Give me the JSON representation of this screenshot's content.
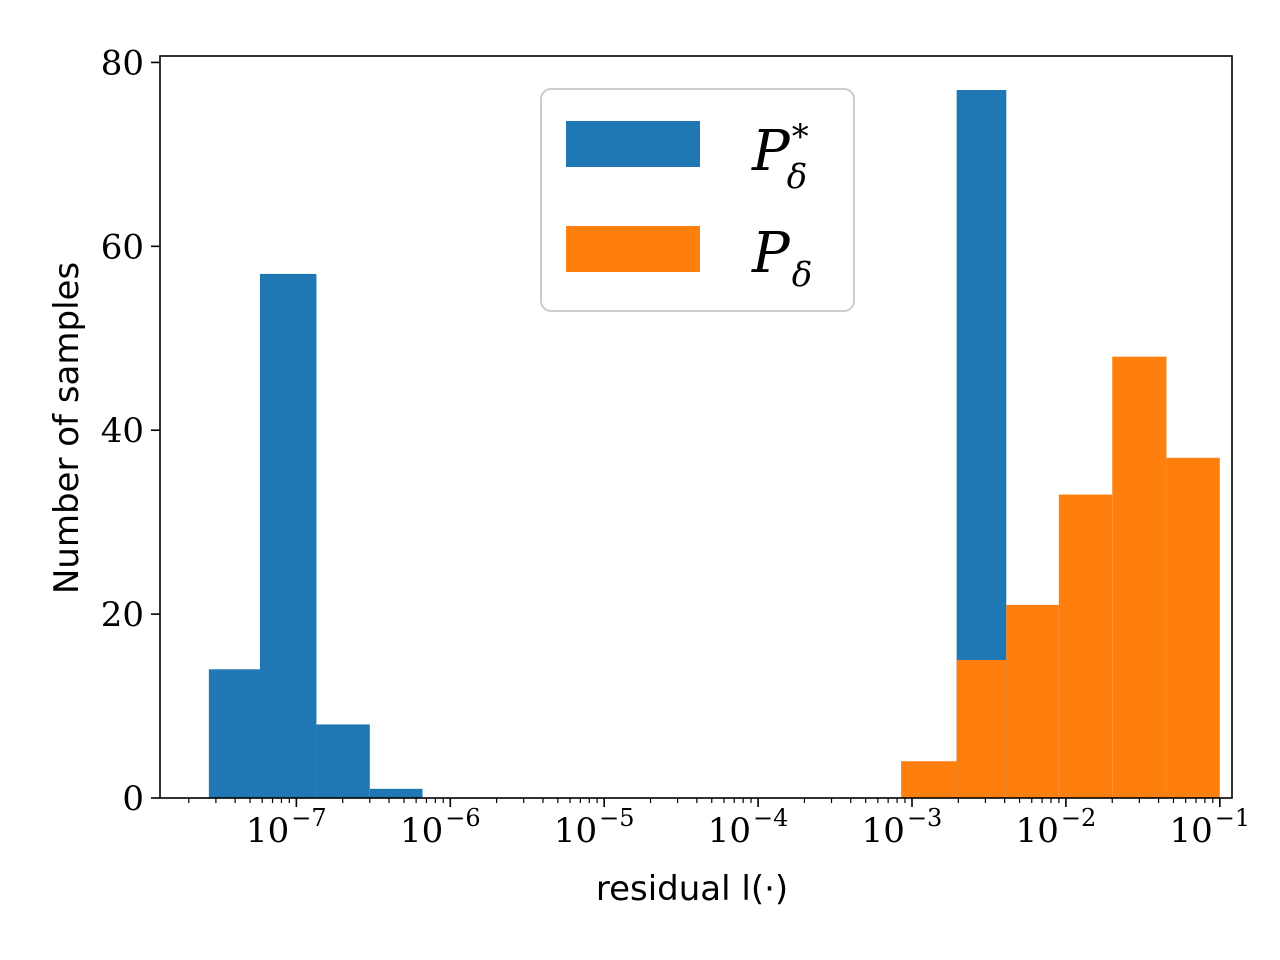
{
  "chart_data": {
    "type": "bar",
    "title": "",
    "xlabel": "residual l(·)",
    "ylabel": "Number of samples",
    "xscale": "log",
    "xlim": [
      1.3e-08,
      0.12
    ],
    "ylim": [
      0,
      80.7
    ],
    "y_ticks": [
      0,
      20,
      40,
      60,
      80
    ],
    "x_ticks": [
      {
        "value": 1e-07,
        "base": "10",
        "exp": "−7"
      },
      {
        "value": 1e-06,
        "base": "10",
        "exp": "−6"
      },
      {
        "value": 1e-05,
        "base": "10",
        "exp": "−5"
      },
      {
        "value": 0.0001,
        "base": "10",
        "exp": "−4"
      },
      {
        "value": 0.001,
        "base": "10",
        "exp": "−3"
      },
      {
        "value": 0.01,
        "base": "10",
        "exp": "−2"
      },
      {
        "value": 0.1,
        "base": "10",
        "exp": "−1"
      }
    ],
    "legend_position": "top-center",
    "series": [
      {
        "name": "P*_δ",
        "legend_main": "P",
        "legend_sub": "δ",
        "legend_sup": "*",
        "color": "#1f77b4",
        "bins": [
          {
            "left": 2.7e-08,
            "right": 5.8e-08,
            "count": 14
          },
          {
            "left": 5.8e-08,
            "right": 1.35e-07,
            "count": 57
          },
          {
            "left": 1.35e-07,
            "right": 3e-07,
            "count": 8
          },
          {
            "left": 3e-07,
            "right": 6.6e-07,
            "count": 1
          },
          {
            "left": 0.00195,
            "right": 0.0041,
            "count": 77
          }
        ]
      },
      {
        "name": "P_δ",
        "legend_main": "P",
        "legend_sub": "δ",
        "legend_sup": "",
        "color": "#ff7f0e",
        "bins": [
          {
            "left": 0.00085,
            "right": 0.00195,
            "count": 4
          },
          {
            "left": 0.00195,
            "right": 0.0041,
            "count": 15
          },
          {
            "left": 0.0041,
            "right": 0.009,
            "count": 21
          },
          {
            "left": 0.009,
            "right": 0.02,
            "count": 33
          },
          {
            "left": 0.02,
            "right": 0.045,
            "count": 48
          },
          {
            "left": 0.045,
            "right": 0.1,
            "count": 37
          }
        ]
      }
    ]
  }
}
